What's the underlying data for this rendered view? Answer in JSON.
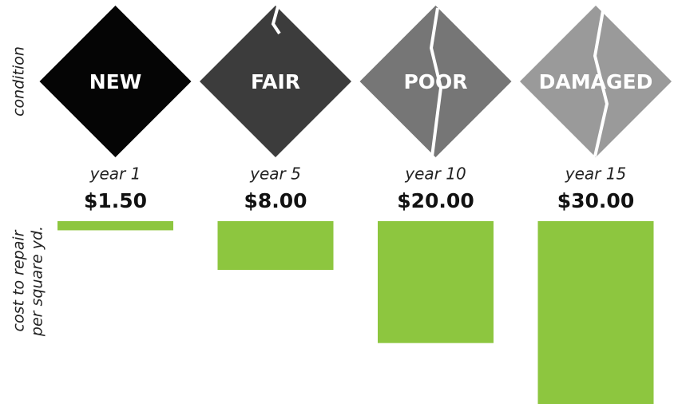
{
  "chart_data": {
    "type": "bar",
    "categories": [
      "NEW",
      "FAIR",
      "POOR",
      "DAMAGED"
    ],
    "periods": [
      "year 1",
      "year 5",
      "year 10",
      "year 15"
    ],
    "values": [
      1.5,
      8,
      20,
      30
    ],
    "value_labels": [
      "$1.50",
      "$8.00",
      "$20.00",
      "$30.00"
    ],
    "color": "#8dc63f",
    "condition_label": "condition",
    "ylabel": [
      "cost to repair",
      "per square yd."
    ]
  }
}
